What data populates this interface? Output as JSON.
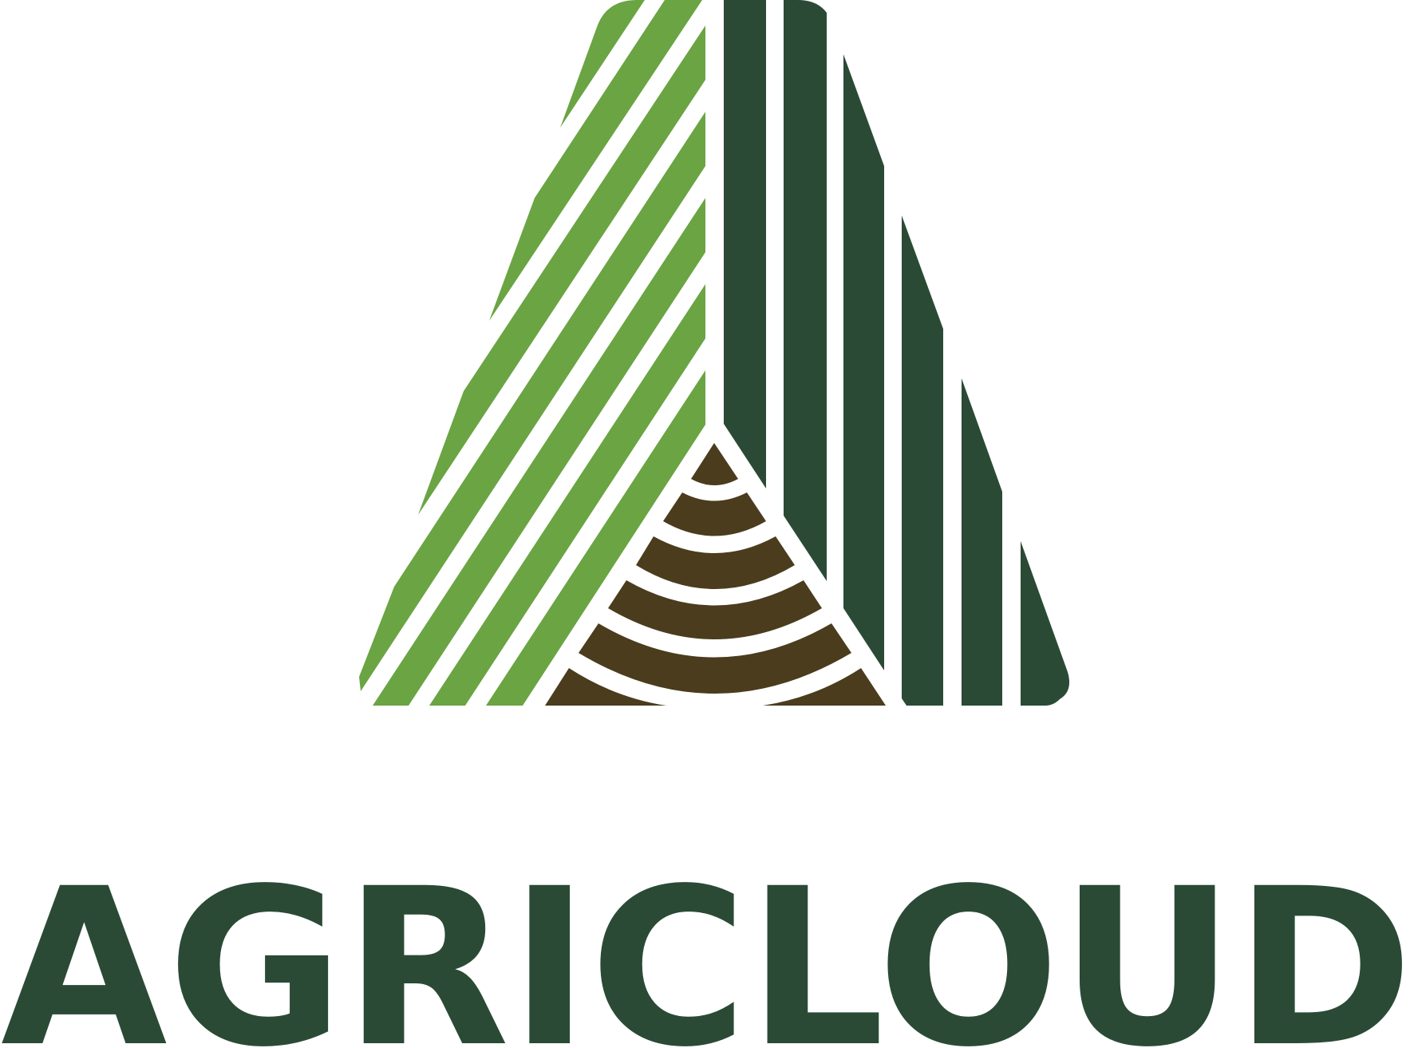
{
  "brand": {
    "name": "AGRICLOUD",
    "colors": {
      "light_green": "#6aa443",
      "dark_green": "#2a4a35",
      "soil_brown": "#4a3c1d",
      "background": "#ffffff"
    },
    "mark_icon": "agricloud-mountain-field-icon"
  }
}
